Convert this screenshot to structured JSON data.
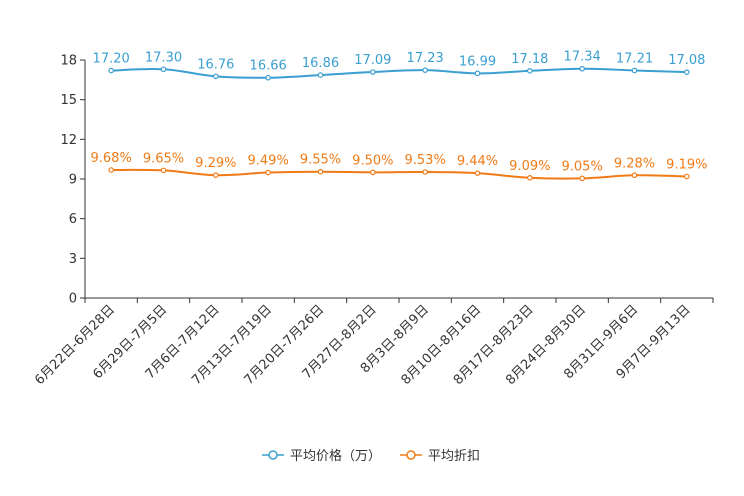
{
  "chart_data": {
    "type": "line",
    "categories": [
      "6月22日-6月28日",
      "6月29日-7月5日",
      "7月6日-7月12日",
      "7月13日-7月19日",
      "7月20日-7月26日",
      "7月27日-8月2日",
      "8月3日-8月9日",
      "8月10日-8月16日",
      "8月17日-8月23日",
      "8月24日-8月30日",
      "8月31日-9月6日",
      "9月7日-9月13日"
    ],
    "ylim": [
      0,
      18
    ],
    "yticks": [
      "0",
      "3",
      "6",
      "9",
      "12",
      "15",
      "18"
    ],
    "series": [
      {
        "name": "平均价格（万）",
        "color": "#3a9fd1",
        "values": [
          17.2,
          17.3,
          16.76,
          16.66,
          16.86,
          17.09,
          17.23,
          16.99,
          17.18,
          17.34,
          17.21,
          17.08
        ],
        "labels": [
          "17.20",
          "17.30",
          "16.76",
          "16.66",
          "16.86",
          "17.09",
          "17.23",
          "16.99",
          "17.18",
          "17.34",
          "17.21",
          "17.08"
        ]
      },
      {
        "name": "平均折扣",
        "color": "#f07b16",
        "values": [
          9.68,
          9.65,
          9.29,
          9.49,
          9.55,
          9.5,
          9.53,
          9.44,
          9.09,
          9.05,
          9.28,
          9.19
        ],
        "labels": [
          "9.68%",
          "9.65%",
          "9.29%",
          "9.49%",
          "9.55%",
          "9.50%",
          "9.53%",
          "9.44%",
          "9.09%",
          "9.05%",
          "9.28%",
          "9.19%"
        ]
      }
    ],
    "legend_position": "bottom-center"
  }
}
